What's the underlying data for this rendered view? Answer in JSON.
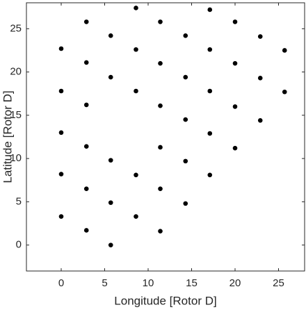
{
  "chart_data": {
    "type": "scatter",
    "x_label": "Longitude [Rotor D]",
    "y_label": "Latitude [Rotor D]",
    "color": "#000000",
    "x": [
      0,
      0,
      0,
      0,
      0,
      2.9,
      2.9,
      2.9,
      2.9,
      2.9,
      2.9,
      5.7,
      5.7,
      5.7,
      5.7,
      5.7,
      8.6,
      8.6,
      8.6,
      8.6,
      8.6,
      11.4,
      11.4,
      11.4,
      11.4,
      11.4,
      11.4,
      14.3,
      14.3,
      14.3,
      14.3,
      14.3,
      17.1,
      17.1,
      17.1,
      17.1,
      17.1,
      20.0,
      20.0,
      20.0,
      20.0,
      22.9,
      22.9,
      22.9,
      25.7,
      25.7
    ],
    "y": [
      22.7,
      17.8,
      13.0,
      8.2,
      3.3,
      25.8,
      21.1,
      16.2,
      11.4,
      6.5,
      1.7,
      24.2,
      19.4,
      9.8,
      4.9,
      0,
      27.4,
      22.6,
      17.8,
      8.1,
      3.3,
      25.8,
      21.0,
      16.1,
      11.3,
      6.5,
      1.6,
      24.2,
      19.4,
      14.5,
      9.7,
      4.8,
      27.2,
      22.6,
      17.8,
      12.9,
      8.1,
      25.8,
      21.0,
      16.0,
      11.2,
      24.1,
      19.3,
      14.4,
      22.5,
      17.7
    ],
    "xlim": [
      -4,
      28
    ],
    "ylim": [
      -3,
      28
    ],
    "xticks": [
      0,
      5,
      10,
      15,
      20,
      25
    ],
    "yticks": [
      0,
      5,
      10,
      15,
      20,
      25
    ]
  }
}
